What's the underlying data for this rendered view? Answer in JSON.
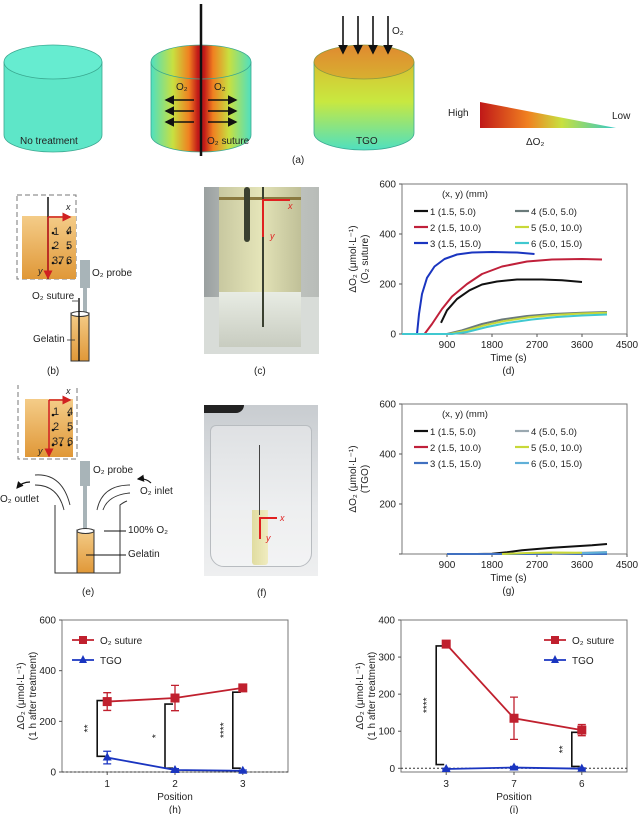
{
  "panel_a": {
    "label": "(a)",
    "items": [
      {
        "caption": "No treatment"
      },
      {
        "caption": "O₂ suture",
        "arrow_labels": [
          "O₂",
          "O₂"
        ]
      },
      {
        "caption": "TGO",
        "arrow_label": "O₂"
      }
    ],
    "legend": {
      "high": "High",
      "low": "Low",
      "title": "ΔO₂"
    },
    "colors": {
      "none": "#5ee6c8",
      "high": "#c8141e",
      "mid": "#f0d020",
      "low": "#4fe0c0"
    }
  },
  "panel_b": {
    "label": "(b)",
    "axis_x": "x",
    "axis_y": "y",
    "points": [
      "1",
      "2",
      "37",
      "6",
      "4",
      "5"
    ],
    "probe": "O₂ probe",
    "suture": "O₂ suture",
    "gelatin": "Gelatin"
  },
  "panel_c": {
    "label": "(c)",
    "axis_x": "x",
    "axis_y": "y"
  },
  "panel_e": {
    "label": "(e)",
    "axis_x": "x",
    "axis_y": "y",
    "probe": "O₂ probe",
    "outlet": "O₂ outlet",
    "inlet": "O₂ inlet",
    "oxygen": "100% O₂",
    "gelatin": "Gelatin"
  },
  "panel_f": {
    "label": "(f)",
    "axis_x": "x",
    "axis_y": "y"
  },
  "chart_data": [
    {
      "id": "d",
      "type": "line",
      "panel_label": "(d)",
      "title": "",
      "xlabel": "Time (s)",
      "ylabel": "ΔO₂ (μmol·L⁻¹)",
      "ylabel2": "(O₂ suture)",
      "xlim": [
        0,
        4500
      ],
      "ylim": [
        0,
        600
      ],
      "xticks": [
        900,
        1800,
        2700,
        3600,
        4500
      ],
      "yticks": [
        0,
        200,
        400,
        600
      ],
      "legend_title": "(x, y) (mm)",
      "legend_position": "top",
      "series": [
        {
          "name": "1 (1.5, 5.0)",
          "color": "#111111",
          "points": [
            [
              780,
              45
            ],
            [
              900,
              95
            ],
            [
              1100,
              140
            ],
            [
              1350,
              175
            ],
            [
              1600,
              198
            ],
            [
              1900,
              210
            ],
            [
              2300,
              218
            ],
            [
              2800,
              218
            ],
            [
              3200,
              215
            ],
            [
              3600,
              208
            ]
          ]
        },
        {
          "name": "2 (1.5, 10.0)",
          "color": "#c0203a",
          "points": [
            [
              450,
              0
            ],
            [
              600,
              40
            ],
            [
              800,
              100
            ],
            [
              1000,
              150
            ],
            [
              1300,
              200
            ],
            [
              1600,
              240
            ],
            [
              2000,
              270
            ],
            [
              2500,
              290
            ],
            [
              3000,
              298
            ],
            [
              3600,
              300
            ],
            [
              4000,
              298
            ]
          ]
        },
        {
          "name": "3 (1.5, 15.0)",
          "color": "#1a35c0",
          "points": [
            [
              300,
              0
            ],
            [
              340,
              80
            ],
            [
              400,
              160
            ],
            [
              500,
              225
            ],
            [
              650,
              270
            ],
            [
              850,
              300
            ],
            [
              1100,
              318
            ],
            [
              1400,
              326
            ],
            [
              1800,
              328
            ],
            [
              2300,
              326
            ],
            [
              2650,
              320
            ]
          ]
        },
        {
          "name": "4 (5.0, 5.0)",
          "color": "#6a7a7a",
          "points": [
            [
              900,
              0
            ],
            [
              1200,
              15
            ],
            [
              1600,
              40
            ],
            [
              2000,
              58
            ],
            [
              2500,
              72
            ],
            [
              3000,
              80
            ],
            [
              3600,
              85
            ],
            [
              4100,
              88
            ]
          ]
        },
        {
          "name": "5 (5.0, 10.0)",
          "color": "#c8d838",
          "points": [
            [
              950,
              0
            ],
            [
              1250,
              12
            ],
            [
              1650,
              35
            ],
            [
              2050,
              52
            ],
            [
              2550,
              67
            ],
            [
              3050,
              76
            ],
            [
              3600,
              82
            ],
            [
              4100,
              85
            ]
          ]
        },
        {
          "name": "6 (5.0, 15.0)",
          "color": "#40c8d0",
          "points": [
            [
              0,
              0
            ],
            [
              1000,
              0
            ],
            [
              1300,
              8
            ],
            [
              1700,
              28
            ],
            [
              2100,
              44
            ],
            [
              2600,
              58
            ],
            [
              3100,
              68
            ],
            [
              3600,
              74
            ],
            [
              4100,
              78
            ]
          ]
        }
      ]
    },
    {
      "id": "g",
      "type": "line",
      "panel_label": "(g)",
      "title": "",
      "xlabel": "Time (s)",
      "ylabel": "ΔO₂ (μmol·L⁻¹)",
      "ylabel2": "(TGO)",
      "xlim": [
        0,
        4500
      ],
      "ylim": [
        0,
        600
      ],
      "xticks": [
        900,
        1800,
        2700,
        3600,
        4500
      ],
      "yticks": [
        200,
        400,
        600
      ],
      "legend_title": "(x, y) (mm)",
      "legend_position": "top",
      "series": [
        {
          "name": "1 (1.5, 5.0)",
          "color": "#111111",
          "points": [
            [
              900,
              0
            ],
            [
              1500,
              0
            ],
            [
              1800,
              1
            ],
            [
              2100,
              7
            ],
            [
              2400,
              15
            ],
            [
              2700,
              20
            ],
            [
              3000,
              25
            ],
            [
              3400,
              30
            ],
            [
              3800,
              35
            ],
            [
              4100,
              40
            ]
          ]
        },
        {
          "name": "2 (1.5, 10.0)",
          "color": "#c0203a",
          "points": [
            [
              900,
              0
            ],
            [
              4100,
              0
            ]
          ]
        },
        {
          "name": "3 (1.5, 15.0)",
          "color": "#4070c0",
          "points": [
            [
              900,
              0
            ],
            [
              4100,
              0
            ]
          ]
        },
        {
          "name": "4 (5.0, 5.0)",
          "color": "#9aa8b0",
          "points": [
            [
              3000,
              0
            ],
            [
              3600,
              5
            ],
            [
              4100,
              8
            ]
          ]
        },
        {
          "name": "5 (5.0, 10.0)",
          "color": "#c8d838",
          "points": [
            [
              2000,
              0
            ],
            [
              2500,
              4
            ],
            [
              3000,
              6
            ],
            [
              3600,
              5
            ]
          ]
        },
        {
          "name": "6 (5.0, 15.0)",
          "color": "#60b0d8",
          "points": [
            [
              3600,
              3
            ],
            [
              4100,
              7
            ]
          ]
        }
      ]
    },
    {
      "id": "h",
      "type": "line",
      "panel_label": "(h)",
      "xlabel": "Position",
      "ylabel": "ΔO₂ (μmol·L⁻¹)",
      "ylabel2": "(1 h after treatment)",
      "categories": [
        "1",
        "2",
        "3"
      ],
      "ylim": [
        0,
        600
      ],
      "yticks": [
        0,
        200,
        400,
        600
      ],
      "legend_position": "top-left",
      "series": [
        {
          "name": "O₂ suture",
          "color": "#c0202e",
          "marker": "square",
          "values": [
            278,
            292,
            332
          ],
          "errors": [
            35,
            50,
            5
          ]
        },
        {
          "name": "TGO",
          "color": "#1a35c0",
          "marker": "triangle",
          "values": [
            57,
            8,
            5
          ],
          "errors": [
            25,
            5,
            3
          ]
        }
      ],
      "significance": [
        {
          "position": "1",
          "label": "**",
          "from": 62,
          "to": 282
        },
        {
          "position": "2",
          "label": "*",
          "from": 15,
          "to": 268
        },
        {
          "position": "3",
          "label": "****",
          "from": 15,
          "to": 315
        }
      ]
    },
    {
      "id": "i",
      "type": "line",
      "panel_label": "(i)",
      "xlabel": "Position",
      "ylabel": "ΔO₂ (μmol·L⁻¹)",
      "ylabel2": "(1 h after treatment)",
      "categories": [
        "3",
        "7",
        "6"
      ],
      "ylim": [
        -10,
        400
      ],
      "yticks": [
        0,
        100,
        200,
        300,
        400
      ],
      "legend_position": "top-right",
      "series": [
        {
          "name": "O₂ suture",
          "color": "#c0202e",
          "marker": "square",
          "values": [
            335,
            135,
            103
          ],
          "errors": [
            5,
            57,
            15
          ]
        },
        {
          "name": "TGO",
          "color": "#1a35c0",
          "marker": "triangle",
          "values": [
            -2,
            2,
            -1
          ],
          "errors": [
            2,
            3,
            2
          ]
        }
      ],
      "significance": [
        {
          "position": "3",
          "label": "****",
          "from": 10,
          "to": 330
        },
        {
          "position": "6",
          "label": "**",
          "from": 5,
          "to": 97
        }
      ]
    }
  ]
}
